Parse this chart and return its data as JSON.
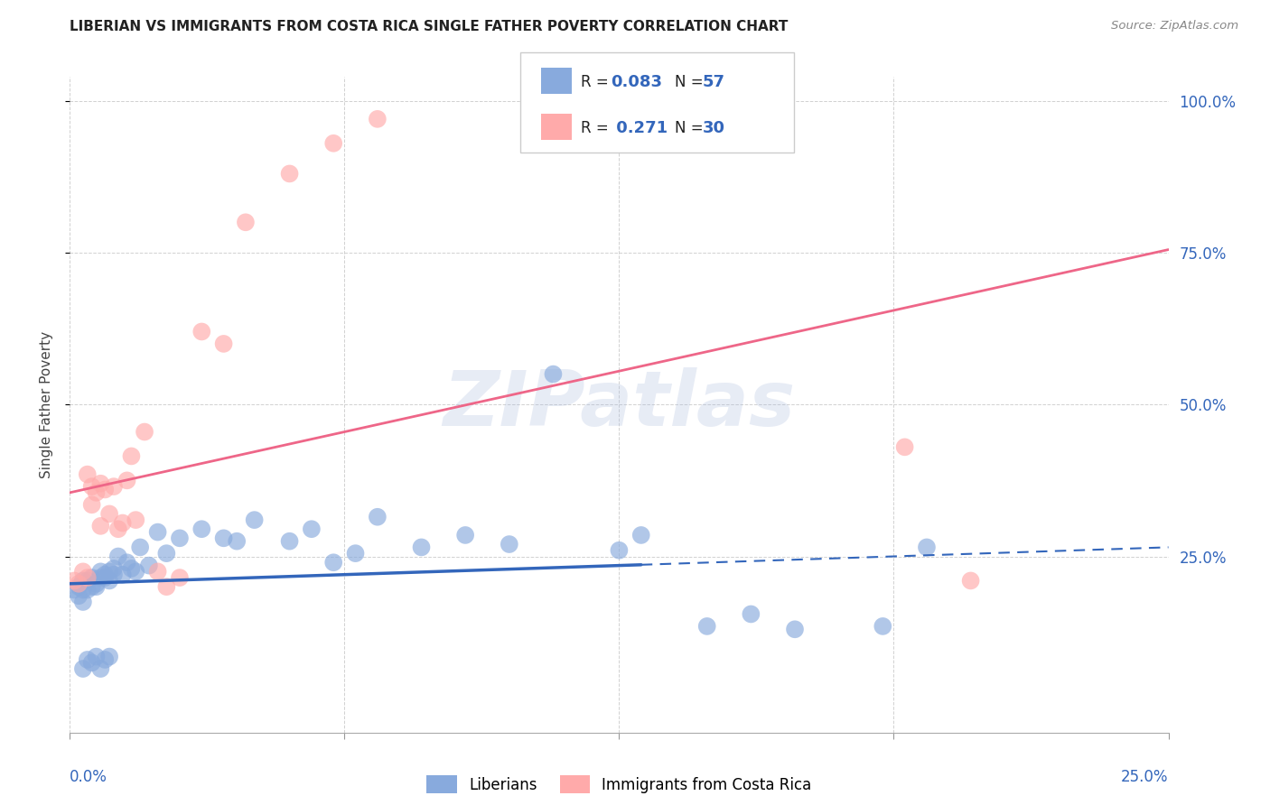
{
  "title": "LIBERIAN VS IMMIGRANTS FROM COSTA RICA SINGLE FATHER POVERTY CORRELATION CHART",
  "source": "Source: ZipAtlas.com",
  "ylabel": "Single Father Poverty",
  "watermark": "ZIPatlas",
  "blue_color": "#88AADD",
  "pink_color": "#FFAAAA",
  "blue_line_color": "#3366BB",
  "pink_line_color": "#EE6688",
  "legend_text_color": "#3366BB",
  "R_blue": "0.083",
  "N_blue": "57",
  "R_pink": "0.271",
  "N_pink": "30",
  "blue_trend": [
    0.205,
    0.265
  ],
  "pink_trend": [
    0.355,
    0.755
  ],
  "blue_x": [
    0.001,
    0.002,
    0.002,
    0.003,
    0.003,
    0.003,
    0.004,
    0.004,
    0.005,
    0.005,
    0.006,
    0.006,
    0.007,
    0.007,
    0.008,
    0.008,
    0.009,
    0.009,
    0.01,
    0.01,
    0.011,
    0.012,
    0.013,
    0.014,
    0.015,
    0.016,
    0.018,
    0.02,
    0.022,
    0.025,
    0.03,
    0.035,
    0.038,
    0.042,
    0.05,
    0.055,
    0.06,
    0.065,
    0.07,
    0.08,
    0.09,
    0.1,
    0.11,
    0.125,
    0.13,
    0.145,
    0.155,
    0.165,
    0.185,
    0.195,
    0.003,
    0.004,
    0.005,
    0.006,
    0.007,
    0.008,
    0.009
  ],
  "blue_y": [
    0.195,
    0.2,
    0.185,
    0.175,
    0.195,
    0.21,
    0.195,
    0.21,
    0.2,
    0.215,
    0.205,
    0.2,
    0.215,
    0.225,
    0.215,
    0.22,
    0.21,
    0.225,
    0.22,
    0.23,
    0.25,
    0.22,
    0.24,
    0.23,
    0.225,
    0.265,
    0.235,
    0.29,
    0.255,
    0.28,
    0.295,
    0.28,
    0.275,
    0.31,
    0.275,
    0.295,
    0.24,
    0.255,
    0.315,
    0.265,
    0.285,
    0.27,
    0.55,
    0.26,
    0.285,
    0.135,
    0.155,
    0.13,
    0.135,
    0.265,
    0.065,
    0.08,
    0.075,
    0.085,
    0.065,
    0.08,
    0.085
  ],
  "pink_x": [
    0.001,
    0.002,
    0.003,
    0.004,
    0.004,
    0.005,
    0.005,
    0.006,
    0.007,
    0.007,
    0.008,
    0.009,
    0.01,
    0.011,
    0.012,
    0.013,
    0.014,
    0.015,
    0.017,
    0.02,
    0.022,
    0.025,
    0.03,
    0.035,
    0.04,
    0.05,
    0.06,
    0.07,
    0.19,
    0.205
  ],
  "pink_y": [
    0.21,
    0.205,
    0.225,
    0.215,
    0.385,
    0.335,
    0.365,
    0.355,
    0.3,
    0.37,
    0.36,
    0.32,
    0.365,
    0.295,
    0.305,
    0.375,
    0.415,
    0.31,
    0.455,
    0.225,
    0.2,
    0.215,
    0.62,
    0.6,
    0.8,
    0.88,
    0.93,
    0.97,
    0.43,
    0.21
  ]
}
